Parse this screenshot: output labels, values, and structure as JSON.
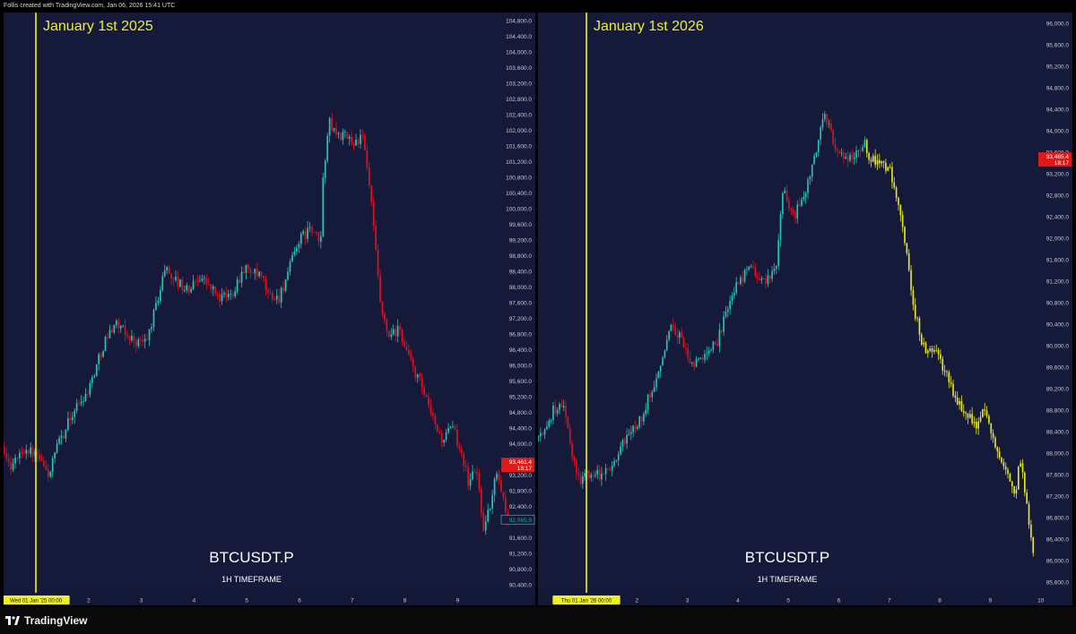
{
  "header": {
    "caption": "Follis created with TradingView.com, Jan 06, 2026 15:41 UTC"
  },
  "footer": {
    "brand": "TradingView",
    "icon": "tradingview-logo-icon"
  },
  "colors": {
    "background": "#151a3a",
    "up": "#26c6b5",
    "down": "#e0101e",
    "projection": "#e8e824",
    "marker_line": "#f0f020",
    "axis_text": "#c8c8d0",
    "price_badge_red": "#e01818",
    "price_badge_teal": "#26a69a"
  },
  "chart_data": [
    {
      "type": "candlestick",
      "symbol": "BTCUSDT.P",
      "timeframe": "1H TIMEFRAME",
      "annotation": "January 1st 2025",
      "x_axis_ticks": [
        "Wed 01 Jan '25  00:00",
        "2",
        "3",
        "4",
        "5",
        "6",
        "7",
        "8",
        "9"
      ],
      "y_axis_ticks": [
        "104,800.0",
        "104,400.0",
        "104,000.0",
        "103,600.0",
        "103,200.0",
        "102,800.0",
        "102,400.0",
        "102,000.0",
        "101,600.0",
        "101,200.0",
        "100,800.0",
        "100,400.0",
        "100,000.0",
        "99,600.0",
        "99,200.0",
        "98,800.0",
        "98,400.0",
        "98,000.0",
        "97,600.0",
        "97,200.0",
        "96,800.0",
        "96,400.0",
        "96,000.0",
        "95,600.0",
        "95,200.0",
        "94,800.0",
        "94,400.0",
        "94,000.0",
        "93,600.0",
        "93,200.0",
        "92,800.0",
        "92,400.0",
        "92,000.0",
        "91,600.0",
        "91,200.0",
        "90,800.0",
        "90,400.0"
      ],
      "ylim": [
        90200,
        105000
      ],
      "current_price_label": "93,461.4",
      "current_price_countdown": "18:17",
      "secondary_price_label": "92,065.9",
      "price_path": [
        {
          "t": -1.1,
          "p": 93800
        },
        {
          "t": -1.0,
          "p": 94000
        },
        {
          "t": -0.95,
          "p": 95600
        },
        {
          "t": -0.88,
          "p": 95100
        },
        {
          "t": -0.78,
          "p": 94200
        },
        {
          "t": -0.6,
          "p": 93900
        },
        {
          "t": -0.5,
          "p": 93400
        },
        {
          "t": -0.2,
          "p": 93900
        },
        {
          "t": 0.0,
          "p": 93700
        },
        {
          "t": 0.25,
          "p": 93200
        },
        {
          "t": 0.4,
          "p": 93900
        },
        {
          "t": 0.7,
          "p": 94800
        },
        {
          "t": 1.0,
          "p": 95400
        },
        {
          "t": 1.3,
          "p": 96600
        },
        {
          "t": 1.5,
          "p": 97100
        },
        {
          "t": 1.7,
          "p": 96800
        },
        {
          "t": 1.9,
          "p": 96600
        },
        {
          "t": 2.1,
          "p": 96600
        },
        {
          "t": 2.35,
          "p": 97900
        },
        {
          "t": 2.45,
          "p": 98500
        },
        {
          "t": 2.7,
          "p": 98100
        },
        {
          "t": 2.9,
          "p": 97900
        },
        {
          "t": 3.1,
          "p": 98300
        },
        {
          "t": 3.3,
          "p": 98000
        },
        {
          "t": 3.5,
          "p": 97700
        },
        {
          "t": 3.7,
          "p": 97800
        },
        {
          "t": 3.95,
          "p": 98500
        },
        {
          "t": 4.3,
          "p": 98200
        },
        {
          "t": 4.4,
          "p": 97800
        },
        {
          "t": 4.6,
          "p": 97700
        },
        {
          "t": 4.8,
          "p": 98400
        },
        {
          "t": 4.95,
          "p": 99100
        },
        {
          "t": 5.2,
          "p": 99500
        },
        {
          "t": 5.4,
          "p": 99100
        },
        {
          "t": 5.45,
          "p": 100800
        },
        {
          "t": 5.55,
          "p": 102200
        },
        {
          "t": 5.7,
          "p": 101900
        },
        {
          "t": 5.9,
          "p": 101800
        },
        {
          "t": 6.05,
          "p": 101700
        },
        {
          "t": 6.2,
          "p": 101800
        },
        {
          "t": 6.35,
          "p": 100300
        },
        {
          "t": 6.55,
          "p": 97300
        },
        {
          "t": 6.7,
          "p": 96700
        },
        {
          "t": 6.9,
          "p": 96900
        },
        {
          "t": 7.1,
          "p": 96100
        },
        {
          "t": 7.3,
          "p": 95500
        },
        {
          "t": 7.5,
          "p": 94700
        },
        {
          "t": 7.7,
          "p": 94100
        },
        {
          "t": 7.9,
          "p": 94400
        },
        {
          "t": 8.1,
          "p": 93700
        },
        {
          "t": 8.2,
          "p": 93000
        },
        {
          "t": 8.35,
          "p": 93400
        },
        {
          "t": 8.5,
          "p": 91800
        },
        {
          "t": 8.65,
          "p": 92600
        },
        {
          "t": 8.75,
          "p": 93400
        },
        {
          "t": 8.85,
          "p": 92700
        },
        {
          "t": 8.95,
          "p": 92000
        }
      ]
    },
    {
      "type": "candlestick",
      "symbol": "BTCUSDT.P",
      "timeframe": "1H TIMEFRAME",
      "annotation": "January 1st 2026",
      "x_axis_ticks": [
        "Thu 01 Jan '26  00:00",
        "2",
        "3",
        "4",
        "5",
        "6",
        "7",
        "8",
        "9",
        "10"
      ],
      "y_axis_ticks": [
        "96,000.0",
        "95,600.0",
        "95,200.0",
        "94,800.0",
        "94,400.0",
        "94,000.0",
        "93,600.0",
        "93,200.0",
        "92,800.0",
        "92,400.0",
        "92,000.0",
        "91,600.0",
        "91,200.0",
        "90,800.0",
        "90,400.0",
        "90,000.0",
        "89,600.0",
        "89,200.0",
        "88,800.0",
        "88,400.0",
        "88,000.0",
        "87,600.0",
        "87,200.0",
        "86,800.0",
        "86,400.0",
        "86,000.0",
        "85,600.0"
      ],
      "ylim": [
        85400,
        96200
      ],
      "current_price_label": "93,465.4",
      "current_price_countdown": "18:17",
      "price_path": [
        {
          "t": -0.95,
          "p": 88300
        },
        {
          "t": -0.8,
          "p": 88400
        },
        {
          "t": -0.65,
          "p": 88800
        },
        {
          "t": -0.45,
          "p": 88900
        },
        {
          "t": -0.3,
          "p": 88000
        },
        {
          "t": -0.15,
          "p": 87500
        },
        {
          "t": 0.0,
          "p": 87600
        },
        {
          "t": 0.3,
          "p": 87600
        },
        {
          "t": 0.5,
          "p": 87800
        },
        {
          "t": 0.8,
          "p": 88300
        },
        {
          "t": 1.1,
          "p": 88700
        },
        {
          "t": 1.3,
          "p": 89200
        },
        {
          "t": 1.5,
          "p": 89800
        },
        {
          "t": 1.7,
          "p": 90400
        },
        {
          "t": 1.9,
          "p": 90100
        },
        {
          "t": 2.1,
          "p": 89600
        },
        {
          "t": 2.3,
          "p": 89800
        },
        {
          "t": 2.6,
          "p": 90100
        },
        {
          "t": 2.9,
          "p": 91000
        },
        {
          "t": 3.1,
          "p": 91300
        },
        {
          "t": 3.3,
          "p": 91400
        },
        {
          "t": 3.5,
          "p": 91200
        },
        {
          "t": 3.75,
          "p": 91400
        },
        {
          "t": 3.9,
          "p": 92900
        },
        {
          "t": 4.1,
          "p": 92400
        },
        {
          "t": 4.3,
          "p": 92700
        },
        {
          "t": 4.5,
          "p": 93400
        },
        {
          "t": 4.7,
          "p": 94300
        },
        {
          "t": 4.9,
          "p": 93800
        },
        {
          "t": 5.1,
          "p": 93400
        },
        {
          "t": 5.3,
          "p": 93500
        },
        {
          "t": 5.5,
          "p": 93800
        },
        {
          "t": 5.6,
          "p": 93500
        },
        {
          "t": 5.8,
          "p": 93400
        },
        {
          "t": 6.0,
          "p": 93300
        },
        {
          "t": 6.2,
          "p": 92600
        },
        {
          "t": 6.4,
          "p": 91300
        },
        {
          "t": 6.5,
          "p": 90600
        },
        {
          "t": 6.7,
          "p": 89900
        },
        {
          "t": 6.9,
          "p": 89900
        },
        {
          "t": 7.1,
          "p": 89500
        },
        {
          "t": 7.3,
          "p": 89000
        },
        {
          "t": 7.5,
          "p": 88800
        },
        {
          "t": 7.7,
          "p": 88500
        },
        {
          "t": 7.9,
          "p": 88800
        },
        {
          "t": 8.1,
          "p": 88100
        },
        {
          "t": 8.3,
          "p": 87600
        },
        {
          "t": 8.5,
          "p": 87300
        },
        {
          "t": 8.6,
          "p": 87900
        },
        {
          "t": 8.7,
          "p": 87100
        },
        {
          "t": 8.8,
          "p": 86500
        },
        {
          "t": 8.85,
          "p": 86100
        }
      ],
      "projection_start_t": 5.55
    }
  ]
}
